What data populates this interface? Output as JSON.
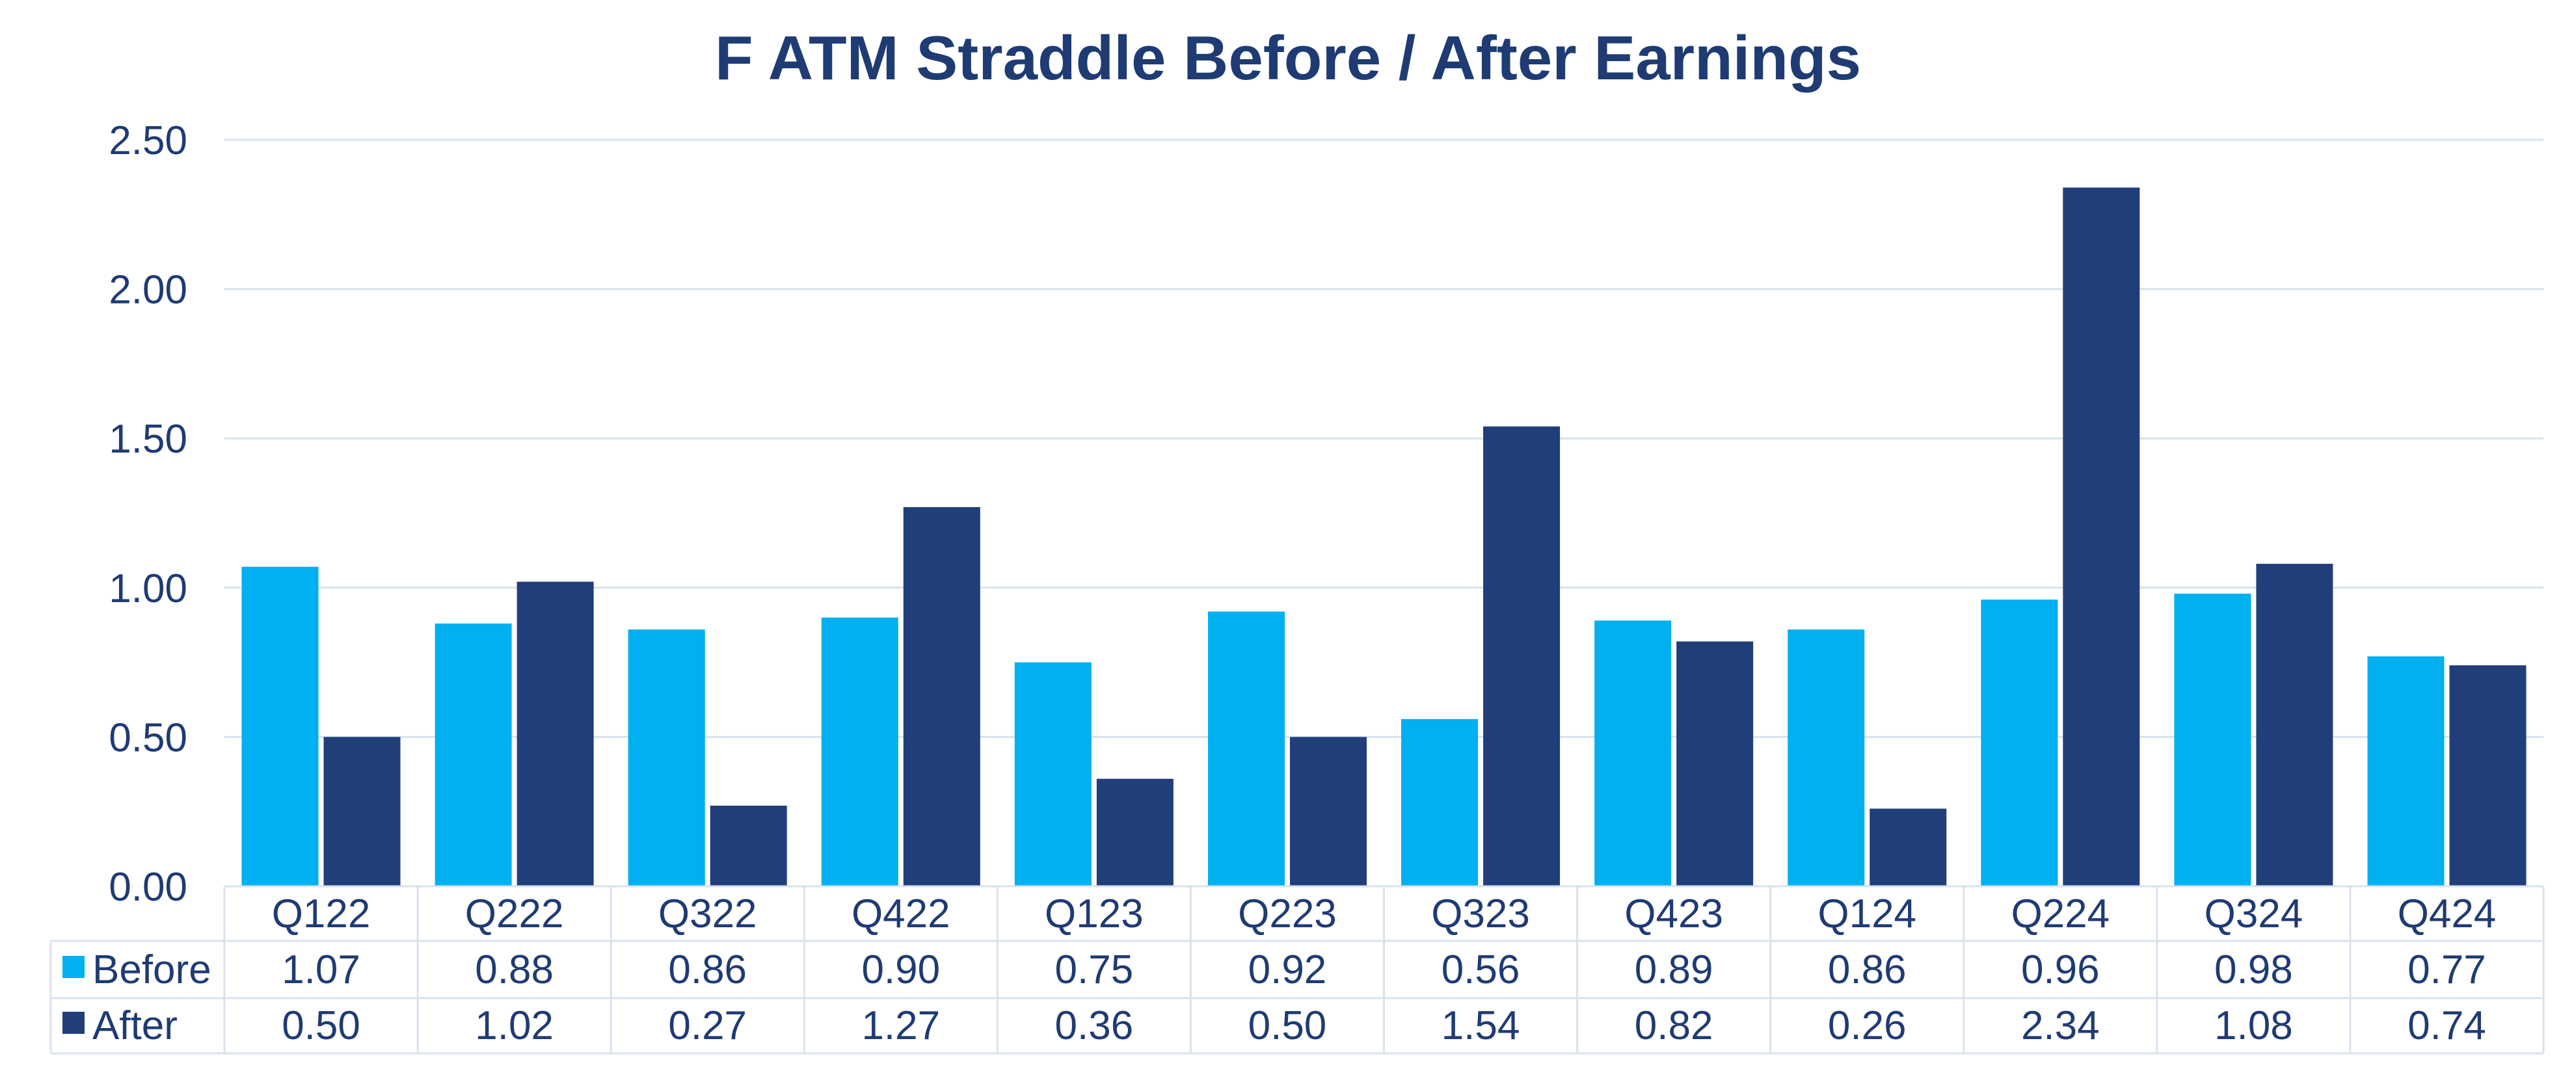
{
  "chart_data": {
    "type": "bar",
    "title": "F ATM Straddle Before / After Earnings",
    "categories": [
      "Q122",
      "Q222",
      "Q322",
      "Q422",
      "Q123",
      "Q223",
      "Q323",
      "Q423",
      "Q124",
      "Q224",
      "Q324",
      "Q424"
    ],
    "series": [
      {
        "name": "Before",
        "color": "#00b0f0",
        "values": [
          1.07,
          0.88,
          0.86,
          0.9,
          0.75,
          0.92,
          0.56,
          0.89,
          0.86,
          0.96,
          0.98,
          0.77
        ]
      },
      {
        "name": "After",
        "color": "#203f7a",
        "values": [
          0.5,
          1.02,
          0.27,
          1.27,
          0.36,
          0.5,
          1.54,
          0.82,
          0.26,
          2.34,
          1.08,
          0.74
        ]
      }
    ],
    "ylim": [
      0,
      2.5
    ],
    "yticks": [
      "0.00",
      "0.50",
      "1.00",
      "1.50",
      "2.00",
      "2.50"
    ],
    "grid": true,
    "data_table": true,
    "xlabel": "",
    "ylabel": ""
  }
}
